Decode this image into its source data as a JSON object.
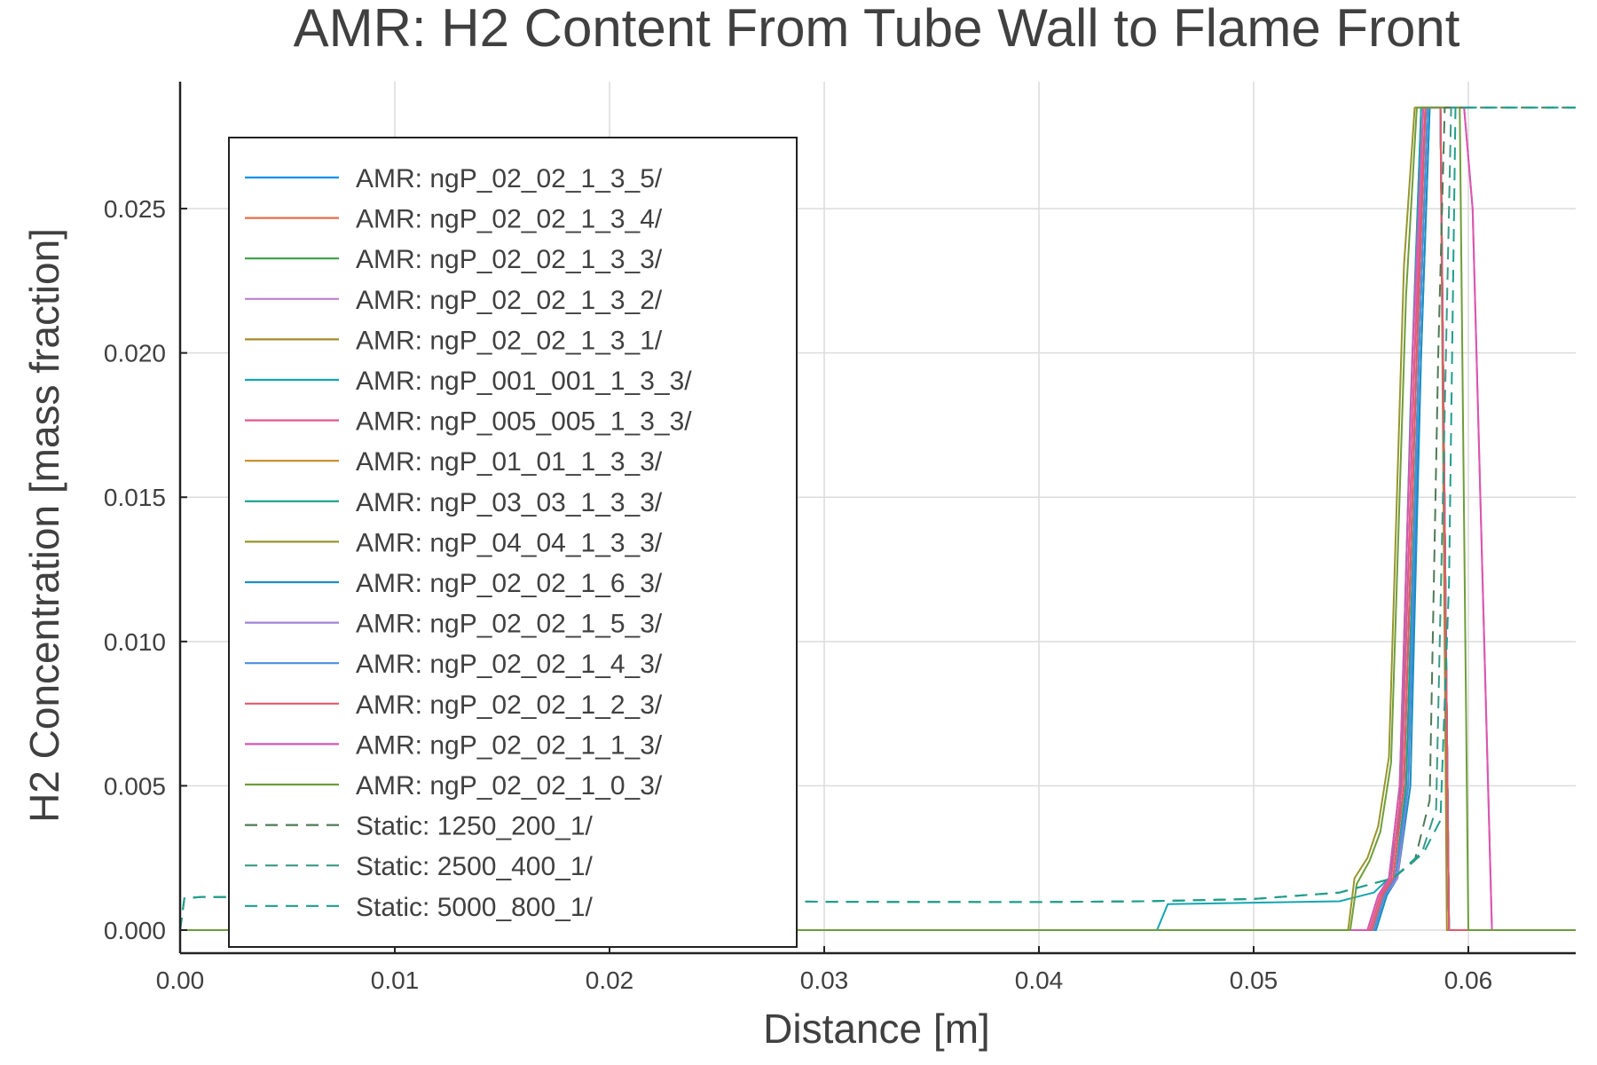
{
  "chart_data": {
    "type": "line",
    "title": "AMR: H2 Content From Tube Wall to Flame Front",
    "xlabel": "Distance [m]",
    "ylabel": "H2 Concentration [mass fraction]",
    "xlim": [
      0.0,
      0.065
    ],
    "ylim": [
      -0.0008,
      0.0294
    ],
    "x_ticks": [
      "0.00",
      "0.01",
      "0.02",
      "0.03",
      "0.04",
      "0.05",
      "0.06"
    ],
    "y_ticks": [
      "0.000",
      "0.005",
      "0.010",
      "0.015",
      "0.020",
      "0.025"
    ],
    "grid": true,
    "legend_position": "top-left",
    "series": [
      {
        "name": "AMR: ngP_02_02_1_3_5/",
        "color": "#0a93e5",
        "style": "solid",
        "x": [
          0,
          0.0557,
          0.0562,
          0.0566,
          0.0572,
          0.0578,
          0.0582,
          0.0587,
          0.0591,
          0.065
        ],
        "y": [
          0,
          0,
          0.0012,
          0.0018,
          0.005,
          0.02,
          0.0285,
          0.0285,
          0,
          0
        ]
      },
      {
        "name": "AMR: ngP_02_02_1_3_4/",
        "color": "#e5704a",
        "style": "solid",
        "x": [
          0,
          0.0556,
          0.0561,
          0.0566,
          0.0571,
          0.0577,
          0.0581,
          0.0587,
          0.0591,
          0.065
        ],
        "y": [
          0,
          0,
          0.0012,
          0.0018,
          0.005,
          0.02,
          0.0285,
          0.0285,
          0,
          0
        ]
      },
      {
        "name": "AMR: ngP_02_02_1_3_3/",
        "color": "#3b9e46",
        "style": "solid",
        "x": [
          0,
          0.0555,
          0.056,
          0.0565,
          0.057,
          0.0576,
          0.058,
          0.0587,
          0.0591,
          0.065
        ],
        "y": [
          0,
          0,
          0.0012,
          0.0018,
          0.005,
          0.02,
          0.0285,
          0.0285,
          0,
          0
        ]
      },
      {
        "name": "AMR: ngP_02_02_1_3_2/",
        "color": "#c07fd6",
        "style": "solid",
        "x": [
          0,
          0.0554,
          0.0559,
          0.0564,
          0.0569,
          0.0575,
          0.0579,
          0.0587,
          0.0591,
          0.065
        ],
        "y": [
          0,
          0,
          0.0012,
          0.0018,
          0.005,
          0.02,
          0.0285,
          0.0285,
          0,
          0
        ]
      },
      {
        "name": "AMR: ngP_02_02_1_3_1/",
        "color": "#a8892c",
        "style": "solid",
        "x": [
          0,
          0.0553,
          0.0558,
          0.0563,
          0.0568,
          0.0574,
          0.0578,
          0.0587,
          0.059,
          0.065
        ],
        "y": [
          0,
          0,
          0.0012,
          0.0018,
          0.005,
          0.02,
          0.0285,
          0.0285,
          0,
          0
        ]
      },
      {
        "name": "AMR: ngP_001_001_1_3_3/",
        "color": "#13a5b2",
        "style": "solid",
        "x": [
          0,
          0.0455,
          0.046,
          0.054,
          0.0556,
          0.0563,
          0.0568,
          0.0573,
          0.0578,
          0.0587,
          0.0591,
          0.065
        ],
        "y": [
          0,
          0,
          0.0009,
          0.001,
          0.0013,
          0.0018,
          0.004,
          0.018,
          0.0285,
          0.0285,
          0,
          0
        ]
      },
      {
        "name": "AMR: ngP_005_005_1_3_3/",
        "color": "#e4568a",
        "style": "solid",
        "x": [
          0,
          0.0554,
          0.0559,
          0.0564,
          0.0569,
          0.0575,
          0.058,
          0.0598,
          0.0602,
          0.0611,
          0.065
        ],
        "y": [
          0,
          0,
          0.0012,
          0.0018,
          0.005,
          0.02,
          0.0285,
          0.0285,
          0.025,
          0,
          0
        ]
      },
      {
        "name": "AMR: ngP_01_01_1_3_3/",
        "color": "#c78b24",
        "style": "solid",
        "x": [
          0,
          0.0555,
          0.056,
          0.0565,
          0.057,
          0.0576,
          0.058,
          0.0587,
          0.0591,
          0.065
        ],
        "y": [
          0,
          0,
          0.0012,
          0.0018,
          0.005,
          0.02,
          0.0285,
          0.0285,
          0,
          0
        ]
      },
      {
        "name": "AMR: ngP_03_03_1_3_3/",
        "color": "#16a18a",
        "style": "solid",
        "x": [
          0,
          0.0556,
          0.0561,
          0.0566,
          0.0571,
          0.0577,
          0.0581,
          0.0587,
          0.0591,
          0.065
        ],
        "y": [
          0,
          0,
          0.0012,
          0.0018,
          0.005,
          0.02,
          0.0285,
          0.0285,
          0,
          0
        ]
      },
      {
        "name": "AMR: ngP_04_04_1_3_3/",
        "color": "#97962c",
        "style": "solid",
        "x": [
          0,
          0.0544,
          0.0547,
          0.0553,
          0.0558,
          0.0563,
          0.057,
          0.0575,
          0.0587,
          0.0591,
          0.065
        ],
        "y": [
          0,
          0,
          0.0018,
          0.0025,
          0.0036,
          0.006,
          0.023,
          0.0285,
          0.0285,
          0,
          0
        ]
      },
      {
        "name": "AMR: ngP_02_02_1_6_3/",
        "color": "#1c8fbf",
        "style": "solid",
        "x": [
          0,
          0.0557,
          0.0562,
          0.0567,
          0.0573,
          0.0578,
          0.0582,
          0.0587,
          0.0591,
          0.065
        ],
        "y": [
          0,
          0,
          0.0012,
          0.0018,
          0.005,
          0.02,
          0.0285,
          0.0285,
          0,
          0
        ]
      },
      {
        "name": "AMR: ngP_02_02_1_5_3/",
        "color": "#9f83d6",
        "style": "solid",
        "x": [
          0,
          0.0556,
          0.0561,
          0.0567,
          0.0572,
          0.0577,
          0.0581,
          0.0587,
          0.0591,
          0.065
        ],
        "y": [
          0,
          0,
          0.0012,
          0.0018,
          0.005,
          0.02,
          0.0285,
          0.0285,
          0,
          0
        ]
      },
      {
        "name": "AMR: ngP_02_02_1_4_3/",
        "color": "#4b8fe0",
        "style": "solid",
        "x": [
          0,
          0.0556,
          0.0561,
          0.0566,
          0.0572,
          0.0577,
          0.0581,
          0.0587,
          0.0591,
          0.065
        ],
        "y": [
          0,
          0,
          0.0012,
          0.0018,
          0.005,
          0.02,
          0.0285,
          0.0285,
          0,
          0
        ]
      },
      {
        "name": "AMR: ngP_02_02_1_2_3/",
        "color": "#e05a6a",
        "style": "solid",
        "x": [
          0,
          0.0555,
          0.056,
          0.0565,
          0.057,
          0.0576,
          0.058,
          0.0587,
          0.0591,
          0.065
        ],
        "y": [
          0,
          0,
          0.0012,
          0.0018,
          0.005,
          0.02,
          0.0285,
          0.0285,
          0,
          0
        ]
      },
      {
        "name": "AMR: ngP_02_02_1_1_3/",
        "color": "#d957b3",
        "style": "solid",
        "x": [
          0,
          0.0553,
          0.0558,
          0.0563,
          0.0568,
          0.0574,
          0.0579,
          0.0598,
          0.0602,
          0.0611,
          0.065
        ],
        "y": [
          0,
          0,
          0.0012,
          0.0018,
          0.005,
          0.02,
          0.0285,
          0.0285,
          0.025,
          0,
          0
        ]
      },
      {
        "name": "AMR: ngP_02_02_1_0_3/",
        "color": "#6e9e3a",
        "style": "solid",
        "x": [
          0,
          0.0545,
          0.0548,
          0.0554,
          0.0559,
          0.0564,
          0.0571,
          0.0576,
          0.0596,
          0.06,
          0.065
        ],
        "y": [
          0,
          0,
          0.0016,
          0.0024,
          0.0034,
          0.0058,
          0.022,
          0.0285,
          0.0285,
          0,
          0
        ]
      },
      {
        "name": "Static: 1250_200_1/",
        "color": "#4f7a55",
        "style": "dashed",
        "x": [
          0,
          0.0002,
          0.001,
          0.01,
          0.03,
          0.04,
          0.045,
          0.05,
          0.054,
          0.0565,
          0.0575,
          0.0582,
          0.0586,
          0.0589,
          0.065
        ],
        "y": [
          0,
          0.0011,
          0.00115,
          0.0011,
          0.00098,
          0.00097,
          0.001,
          0.00108,
          0.0013,
          0.0018,
          0.0024,
          0.0045,
          0.02,
          0.0285,
          0.0285
        ]
      },
      {
        "name": "Static: 2500_400_1/",
        "color": "#3a9a86",
        "style": "dashed",
        "x": [
          0,
          0.0002,
          0.001,
          0.01,
          0.03,
          0.04,
          0.045,
          0.05,
          0.054,
          0.0565,
          0.0578,
          0.0585,
          0.0589,
          0.0592,
          0.065
        ],
        "y": [
          0,
          0.0011,
          0.00115,
          0.0011,
          0.00098,
          0.00097,
          0.001,
          0.00108,
          0.0013,
          0.0018,
          0.0026,
          0.0042,
          0.018,
          0.0285,
          0.0285
        ]
      },
      {
        "name": "Static: 5000_800_1/",
        "color": "#1d9f8d",
        "style": "dashed",
        "x": [
          0,
          0.0002,
          0.001,
          0.01,
          0.03,
          0.04,
          0.045,
          0.05,
          0.054,
          0.0565,
          0.058,
          0.0587,
          0.0591,
          0.0594,
          0.065
        ],
        "y": [
          0,
          0.0011,
          0.00115,
          0.0011,
          0.00098,
          0.00097,
          0.001,
          0.00108,
          0.0013,
          0.0018,
          0.0028,
          0.0038,
          0.012,
          0.0285,
          0.0285
        ]
      }
    ]
  }
}
